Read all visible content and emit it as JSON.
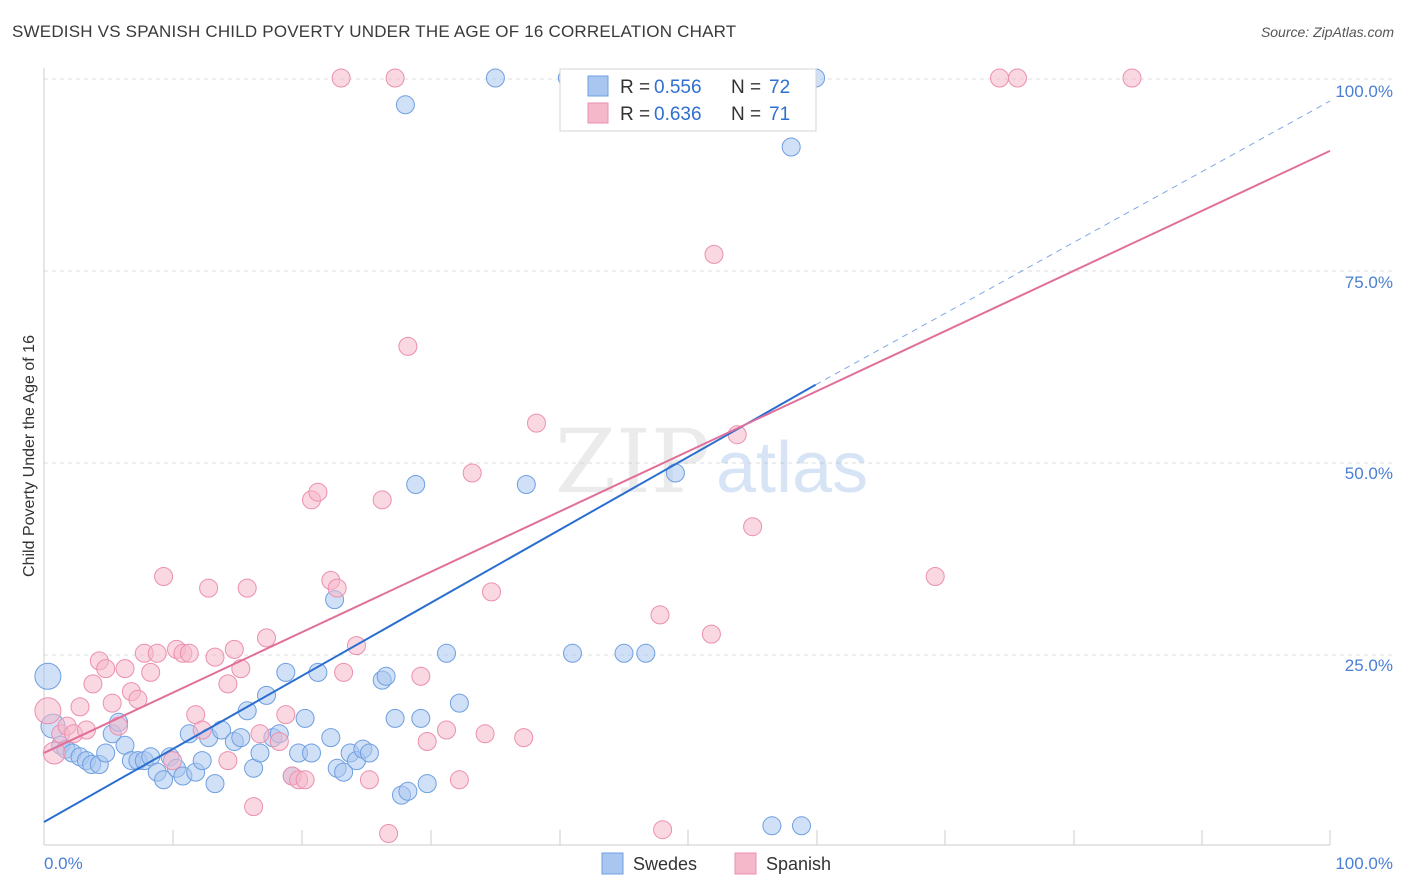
{
  "title": "SWEDISH VS SPANISH CHILD POVERTY UNDER THE AGE OF 16 CORRELATION CHART",
  "source": "Source: ZipAtlas.com",
  "watermark": {
    "zip": "ZIP",
    "atlas": "atlas"
  },
  "colors": {
    "swedes_fill": "#a9c6f0",
    "swedes_stroke": "#6f9fe0",
    "swedes_line": "#2a6fd0",
    "spanish_fill": "#f5b8cb",
    "spanish_stroke": "#ec8fae",
    "spanish_line": "#e0709a",
    "tick_text": "#4a7fd4",
    "grid": "#dddddd"
  },
  "legend": {
    "rows": [
      {
        "series": "swedes",
        "r_label": "R =",
        "r_value": "0.556",
        "n_label": "N =",
        "n_value": "72"
      },
      {
        "series": "spanish",
        "r_label": "R =",
        "r_value": "0.636",
        "n_label": "N =",
        "n_value": "71"
      }
    ]
  },
  "chart_data": {
    "type": "scatter",
    "title": "SWEDISH VS SPANISH CHILD POVERTY UNDER THE AGE OF 16 CORRELATION CHART",
    "xlabel": "",
    "ylabel": "Child Poverty Under the Age of 16",
    "xlim": [
      0,
      100
    ],
    "ylim": [
      0,
      100
    ],
    "x_tick_labels": [
      "0.0%",
      "100.0%"
    ],
    "y_tick_labels": [
      "25.0%",
      "50.0%",
      "75.0%",
      "100.0%"
    ],
    "y_tick_values": [
      25,
      50,
      75,
      100
    ],
    "grid": "horizontal dashed",
    "legend_position": "top-center",
    "series": [
      {
        "name": "Swedes",
        "color": "#6f9fe0",
        "trend": {
          "x": [
            0,
            60
          ],
          "y": [
            3.0,
            60.0
          ],
          "extended_dashed_to": [
            100,
            97.0
          ]
        },
        "points": [
          [
            0.3,
            22.0,
            13
          ],
          [
            0.7,
            15.5,
            12
          ],
          [
            1.3,
            13.0,
            9
          ],
          [
            1.7,
            12.5,
            9
          ],
          [
            2.2,
            12.0,
            9
          ],
          [
            2.8,
            11.5,
            9
          ],
          [
            3.3,
            11.0,
            9
          ],
          [
            3.7,
            10.5,
            9
          ],
          [
            4.3,
            10.5,
            9
          ],
          [
            4.8,
            12.0,
            9
          ],
          [
            5.3,
            14.5,
            9
          ],
          [
            5.8,
            16.0,
            9
          ],
          [
            6.3,
            13.0,
            9
          ],
          [
            6.8,
            11.0,
            9
          ],
          [
            7.3,
            11.0,
            9
          ],
          [
            7.8,
            11.0,
            9
          ],
          [
            8.3,
            11.5,
            9
          ],
          [
            8.8,
            9.5,
            9
          ],
          [
            9.3,
            8.5,
            9
          ],
          [
            9.8,
            11.5,
            9
          ],
          [
            10.3,
            10.0,
            9
          ],
          [
            10.8,
            9.0,
            9
          ],
          [
            11.3,
            14.5,
            9
          ],
          [
            11.8,
            9.5,
            9
          ],
          [
            12.3,
            11.0,
            9
          ],
          [
            12.8,
            14.0,
            9
          ],
          [
            13.3,
            8.0,
            9
          ],
          [
            13.8,
            15.0,
            9
          ],
          [
            14.8,
            13.5,
            9
          ],
          [
            15.3,
            14.0,
            9
          ],
          [
            15.8,
            17.5,
            9
          ],
          [
            16.3,
            10.0,
            9
          ],
          [
            16.8,
            12.0,
            9
          ],
          [
            17.3,
            19.5,
            9
          ],
          [
            17.8,
            14.0,
            9
          ],
          [
            18.3,
            14.5,
            9
          ],
          [
            18.8,
            22.5,
            9
          ],
          [
            19.3,
            9.0,
            9
          ],
          [
            19.8,
            12.0,
            9
          ],
          [
            20.3,
            16.5,
            9
          ],
          [
            20.8,
            12.0,
            9
          ],
          [
            21.3,
            22.5,
            9
          ],
          [
            22.3,
            14.0,
            9
          ],
          [
            22.8,
            10.0,
            9
          ],
          [
            23.3,
            9.5,
            9
          ],
          [
            23.8,
            12.0,
            9
          ],
          [
            24.3,
            11.0,
            9
          ],
          [
            24.8,
            12.5,
            9
          ],
          [
            25.3,
            12.0,
            9
          ],
          [
            26.3,
            21.5,
            9
          ],
          [
            26.6,
            22.0,
            9
          ],
          [
            27.3,
            16.5,
            9
          ],
          [
            27.8,
            6.5,
            9
          ],
          [
            28.3,
            7.0,
            9
          ],
          [
            29.3,
            16.5,
            9
          ],
          [
            29.8,
            8.0,
            9
          ],
          [
            31.3,
            25.0,
            9
          ],
          [
            32.3,
            18.5,
            9
          ],
          [
            28.1,
            96.5,
            9
          ],
          [
            35.1,
            100.0,
            9
          ],
          [
            28.9,
            47.0,
            9
          ],
          [
            22.6,
            32.0,
            9
          ],
          [
            37.5,
            47.0,
            9
          ],
          [
            41.1,
            25.0,
            9
          ],
          [
            45.1,
            25.0,
            9
          ],
          [
            49.1,
            48.5,
            9
          ],
          [
            46.8,
            25.0,
            9
          ],
          [
            60.0,
            100.0,
            9
          ],
          [
            40.7,
            100.0,
            9
          ],
          [
            58.1,
            91.0,
            9
          ],
          [
            56.6,
            2.5,
            9
          ],
          [
            58.9,
            2.5,
            9
          ]
        ]
      },
      {
        "name": "Spanish",
        "color": "#ec8fae",
        "trend": {
          "x": [
            0,
            100
          ],
          "y": [
            12.0,
            90.5
          ]
        },
        "points": [
          [
            0.3,
            17.5,
            13
          ],
          [
            0.8,
            12.0,
            11
          ],
          [
            1.3,
            14.5,
            9
          ],
          [
            1.8,
            15.5,
            9
          ],
          [
            2.3,
            14.5,
            9
          ],
          [
            2.8,
            18.0,
            9
          ],
          [
            3.3,
            15.0,
            9
          ],
          [
            3.8,
            21.0,
            9
          ],
          [
            4.3,
            24.0,
            9
          ],
          [
            4.8,
            23.0,
            9
          ],
          [
            5.3,
            18.5,
            9
          ],
          [
            5.8,
            15.5,
            9
          ],
          [
            6.3,
            23.0,
            9
          ],
          [
            6.8,
            20.0,
            9
          ],
          [
            7.3,
            19.0,
            9
          ],
          [
            7.8,
            25.0,
            9
          ],
          [
            8.3,
            22.5,
            9
          ],
          [
            8.8,
            25.0,
            9
          ],
          [
            9.3,
            35.0,
            9
          ],
          [
            10.0,
            11.0,
            9
          ],
          [
            10.3,
            25.5,
            9
          ],
          [
            10.8,
            25.0,
            9
          ],
          [
            11.3,
            25.0,
            9
          ],
          [
            11.8,
            17.0,
            9
          ],
          [
            12.3,
            15.0,
            9
          ],
          [
            12.8,
            33.5,
            9
          ],
          [
            13.3,
            24.5,
            9
          ],
          [
            14.3,
            11.0,
            9
          ],
          [
            14.3,
            21.0,
            9
          ],
          [
            14.8,
            25.5,
            9
          ],
          [
            15.3,
            23.0,
            9
          ],
          [
            15.8,
            33.5,
            9
          ],
          [
            16.3,
            5.0,
            9
          ],
          [
            16.8,
            14.5,
            9
          ],
          [
            17.3,
            27.0,
            9
          ],
          [
            18.3,
            13.5,
            9
          ],
          [
            18.8,
            17.0,
            9
          ],
          [
            19.3,
            9.0,
            9
          ],
          [
            19.8,
            8.5,
            9
          ],
          [
            20.3,
            8.5,
            9
          ],
          [
            20.8,
            45.0,
            9
          ],
          [
            21.3,
            46.0,
            9
          ],
          [
            22.3,
            34.5,
            9
          ],
          [
            22.8,
            33.5,
            9
          ],
          [
            23.3,
            22.5,
            9
          ],
          [
            24.3,
            26.0,
            9
          ],
          [
            25.3,
            8.5,
            9
          ],
          [
            26.3,
            45.0,
            9
          ],
          [
            26.8,
            1.5,
            9
          ],
          [
            28.3,
            65.0,
            9
          ],
          [
            29.8,
            13.5,
            9
          ],
          [
            29.3,
            22.0,
            9
          ],
          [
            31.3,
            15.0,
            9
          ],
          [
            32.3,
            8.5,
            9
          ],
          [
            33.3,
            48.5,
            9
          ],
          [
            34.3,
            14.5,
            9
          ],
          [
            34.8,
            33.0,
            9
          ],
          [
            37.3,
            14.0,
            9
          ],
          [
            38.3,
            55.0,
            9
          ],
          [
            48.1,
            2.0,
            9
          ],
          [
            47.9,
            30.0,
            9
          ],
          [
            51.9,
            27.5,
            9
          ],
          [
            52.1,
            77.0,
            9
          ],
          [
            53.9,
            53.5,
            9
          ],
          [
            55.1,
            41.5,
            9
          ],
          [
            69.3,
            35.0,
            9
          ],
          [
            23.1,
            100.0,
            9
          ],
          [
            27.3,
            100.0,
            9
          ],
          [
            74.3,
            100.0,
            9
          ],
          [
            75.7,
            100.0,
            9
          ],
          [
            84.6,
            100.0,
            9
          ]
        ]
      }
    ]
  },
  "bottom_legend": [
    {
      "series": "swedes",
      "label": "Swedes"
    },
    {
      "series": "spanish",
      "label": "Spanish"
    }
  ]
}
